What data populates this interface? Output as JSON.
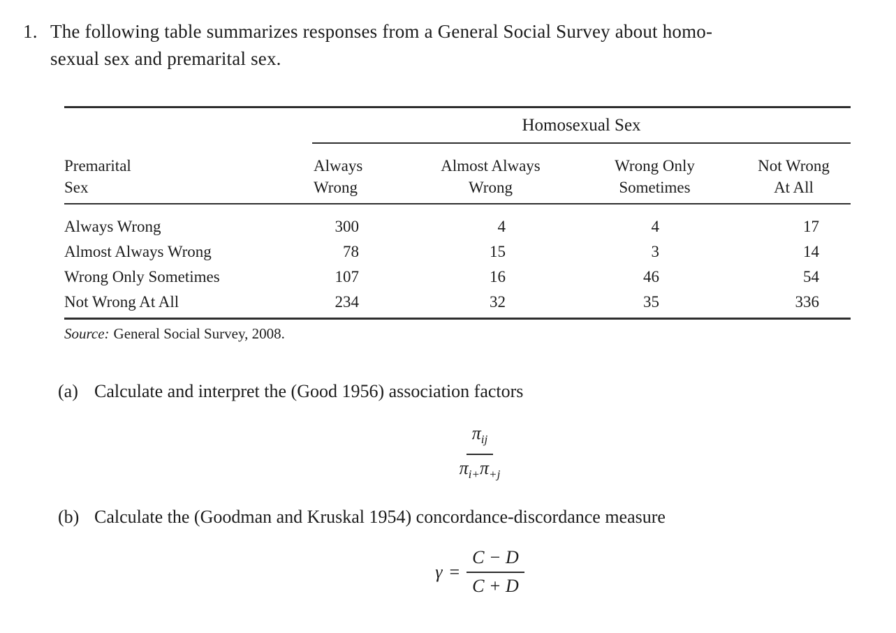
{
  "page": {
    "background": "#ffffff",
    "text_color": "#1b1b1b",
    "rule_color": "#2e2e2e"
  },
  "problem": {
    "number": "1.",
    "line1": "The following table summarizes responses from a General Social Survey about homo-",
    "line2": "sexual sex and premarital sex."
  },
  "table": {
    "span_header": "Homosexual Sex",
    "row_header_line1": "Premarital",
    "row_header_line2": "Sex",
    "col_headers": [
      {
        "line1": "Always",
        "line2": "Wrong"
      },
      {
        "line1": "Almost Always",
        "line2": "Wrong"
      },
      {
        "line1": "Wrong Only",
        "line2": "Sometimes"
      },
      {
        "line1": "Not Wrong",
        "line2": "At All"
      }
    ],
    "rows": [
      {
        "label": "Always Wrong",
        "values": [
          "300",
          "4",
          "4",
          "17"
        ]
      },
      {
        "label": "Almost Always Wrong",
        "values": [
          "78",
          "15",
          "3",
          "14"
        ]
      },
      {
        "label": "Wrong Only Sometimes",
        "values": [
          "107",
          "16",
          "46",
          "54"
        ]
      },
      {
        "label": "Not Wrong At All",
        "values": [
          "234",
          "32",
          "35",
          "336"
        ]
      }
    ],
    "source_label": "Source:",
    "source_text": "General Social Survey, 2008."
  },
  "parts": {
    "a_label": "(a)",
    "a_text": "Calculate and interpret the (Good 1956) association factors",
    "b_label": "(b)",
    "b_text": "Calculate the (Goodman and Kruskal 1954) concordance-discordance measure"
  },
  "formula_a": {
    "pi": "π",
    "num_sub": "ij",
    "den_sub_1": "i+",
    "den_sub_2": "+j"
  },
  "formula_b": {
    "gamma": "γ",
    "equals": "=",
    "numerator": "C − D",
    "denominator": "C + D"
  }
}
